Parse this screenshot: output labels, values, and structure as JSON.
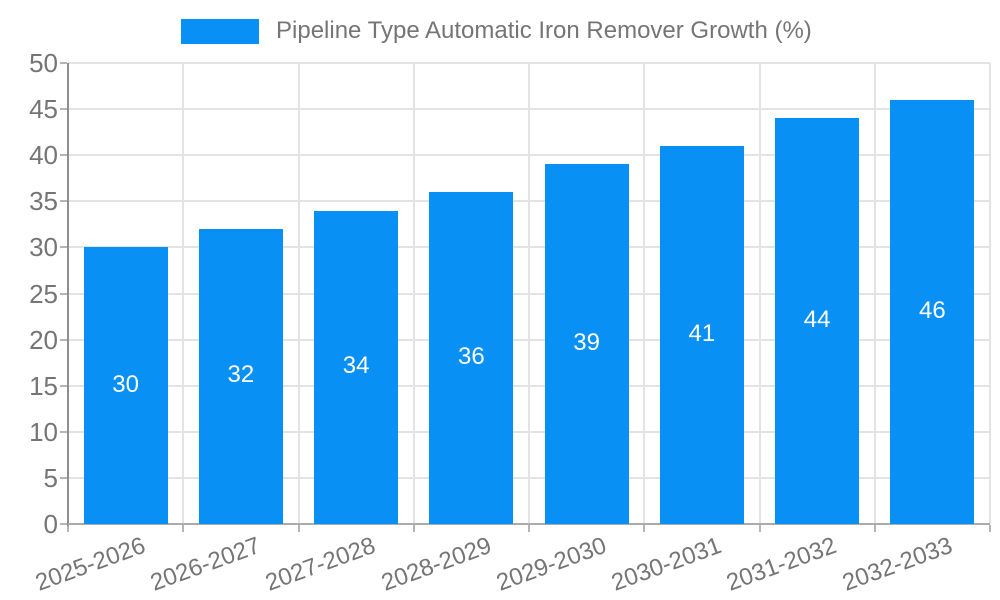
{
  "legend": {
    "label": "Pipeline Type Automatic Iron Remover Growth (%)"
  },
  "colors": {
    "bar": "#0890F5",
    "bar_label": "#ffffff",
    "tick_text": "#757575",
    "gridline": "#e3e3e3",
    "y_axis_line": "#8f8f8f",
    "x_axis_line": "#ababab"
  },
  "chart_data": {
    "type": "bar",
    "title": "Pipeline Type Automatic Iron Remover Growth (%)",
    "categories": [
      "2025-2026",
      "2026-2027",
      "2027-2028",
      "2028-2029",
      "2029-2030",
      "2030-2031",
      "2031-2032",
      "2032-2033"
    ],
    "values": [
      30,
      32,
      34,
      36,
      39,
      41,
      44,
      46
    ],
    "xlabel": "",
    "ylabel": "",
    "ylim": [
      0,
      50
    ],
    "yticks": [
      0,
      5,
      10,
      15,
      20,
      25,
      30,
      35,
      40,
      45,
      50
    ],
    "grid": true,
    "legend_position": "top",
    "bar_labels_inside": true,
    "xtick_rotation_deg": -20
  }
}
